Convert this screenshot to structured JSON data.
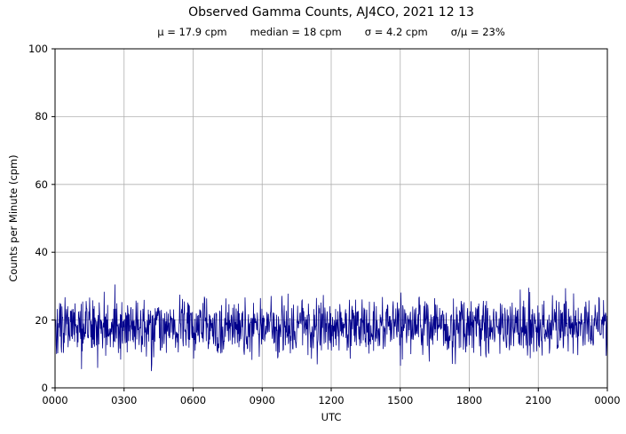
{
  "chart_data": {
    "type": "line",
    "title": "Observed Gamma Counts, AJ4CO, 2021 12 13",
    "stats_line": [
      "μ = 17.9 cpm",
      "median = 18 cpm",
      "σ = 4.2 cpm",
      "σ/μ = 23%"
    ],
    "xlabel": "UTC",
    "ylabel": "Counts per Minute (cpm)",
    "x_tick_labels": [
      "0000",
      "0300",
      "0600",
      "0900",
      "1200",
      "1500",
      "1800",
      "2100",
      "0000"
    ],
    "y_tick_labels": [
      0,
      20,
      40,
      60,
      80,
      100
    ],
    "ylim": [
      0,
      100
    ],
    "xlim_minutes": [
      0,
      1440
    ],
    "grid": true,
    "legend": "none",
    "line_color": "#00008B",
    "grid_color": "#b0b0b0",
    "series": [
      {
        "name": "observed gamma counts",
        "points_per_day": 1440,
        "mean_cpm": 17.9,
        "median_cpm": 18,
        "sigma_cpm": 4.2,
        "cv_percent": 23,
        "observed_min_cpm": 4,
        "observed_max_cpm": 30,
        "description": "one-minute gamma count rate samples, random noise about the mean with no trend across the full 24 h"
      }
    ]
  }
}
